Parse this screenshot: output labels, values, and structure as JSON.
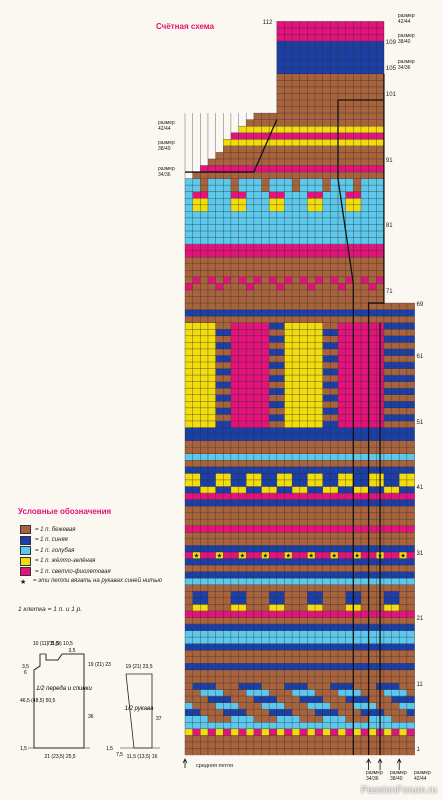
{
  "title": "Счётная схема",
  "row_labels": [
    {
      "n": "112",
      "row": 112,
      "side": "left"
    },
    {
      "n": "109",
      "row": 109,
      "side": "right"
    },
    {
      "n": "105",
      "row": 105,
      "side": "right"
    },
    {
      "n": "101",
      "row": 101,
      "side": "right"
    },
    {
      "n": "91",
      "row": 91,
      "side": "right"
    },
    {
      "n": "81",
      "row": 81,
      "side": "right"
    },
    {
      "n": "71",
      "row": 71,
      "side": "right"
    },
    {
      "n": "69",
      "row": 69,
      "side": "right"
    },
    {
      "n": "61",
      "row": 61,
      "side": "right"
    },
    {
      "n": "51",
      "row": 51,
      "side": "right"
    },
    {
      "n": "41",
      "row": 41,
      "side": "right"
    },
    {
      "n": "31",
      "row": 31,
      "side": "right"
    },
    {
      "n": "21",
      "row": 21,
      "side": "right"
    },
    {
      "n": "11",
      "row": 11,
      "side": "right"
    },
    {
      "n": "1",
      "row": 1,
      "side": "right"
    }
  ],
  "size_marks_right": [
    {
      "label": "размер 42/44",
      "row": 112
    },
    {
      "label": "размер 38/40",
      "row": 109
    },
    {
      "label": "размер 34/36",
      "row": 105
    }
  ],
  "size_marks_left": [
    {
      "label": "размер 42/44",
      "row": 96
    },
    {
      "label": "размер 38/40",
      "row": 93
    },
    {
      "label": "размер 34/36",
      "row": 89
    }
  ],
  "bottom_sizes": [
    "размер 34/36",
    "размер 38/40",
    "размер 42/44"
  ],
  "middle_loop": "средняя петля",
  "legend": {
    "title": "Условные обозначения",
    "items": [
      {
        "color": "#a8633d",
        "text": "= 1 п. бежевая"
      },
      {
        "color": "#1b3fa6",
        "text": "= 1 п. синяя"
      },
      {
        "color": "#5cc8ec",
        "text": "= 1 п. голубая"
      },
      {
        "color": "#f2dc0b",
        "text": "= 1 п. жёлто-зелёная"
      },
      {
        "color": "#e4127b",
        "text": "= 1 п. светло-фиолетовая"
      },
      {
        "color": "#f4e3b8",
        "text": "= эти петли вязать на рукавах синей нитью",
        "icon": "star"
      }
    ],
    "cell_note": "1 клетка = 1 п. и 1 р."
  },
  "schematic_front": {
    "label": "1/2 переда и спинки",
    "dims_top": [
      "10 (11) 11,5",
      "7,5 (9) 10,5",
      "3,5"
    ],
    "dims_left_top": [
      "3,5",
      "6"
    ],
    "dims_left": [
      "46,5 (48,5) 50,5"
    ],
    "dims_right_top": [
      "19 (21) 23"
    ],
    "dims_right": [
      "36"
    ],
    "dims_bottom": [
      "21 (23,5) 25,5"
    ],
    "hem": "1,5"
  },
  "schematic_sleeve": {
    "label": "1/2 рукава",
    "dims_top": [
      "19 (21) 23,5"
    ],
    "dims_right": [
      "37"
    ],
    "dims_bottom": [
      "11,5 (13,5) 16"
    ],
    "dims_left": [
      "7,5"
    ],
    "hem": "1,5"
  },
  "watermark": "PassionForum.ru",
  "colors": {
    "beige": "#a8633d",
    "blue": "#1b3fa6",
    "lightblue": "#5cc8ec",
    "yellow": "#f2dc0b",
    "violet": "#e4127b"
  }
}
